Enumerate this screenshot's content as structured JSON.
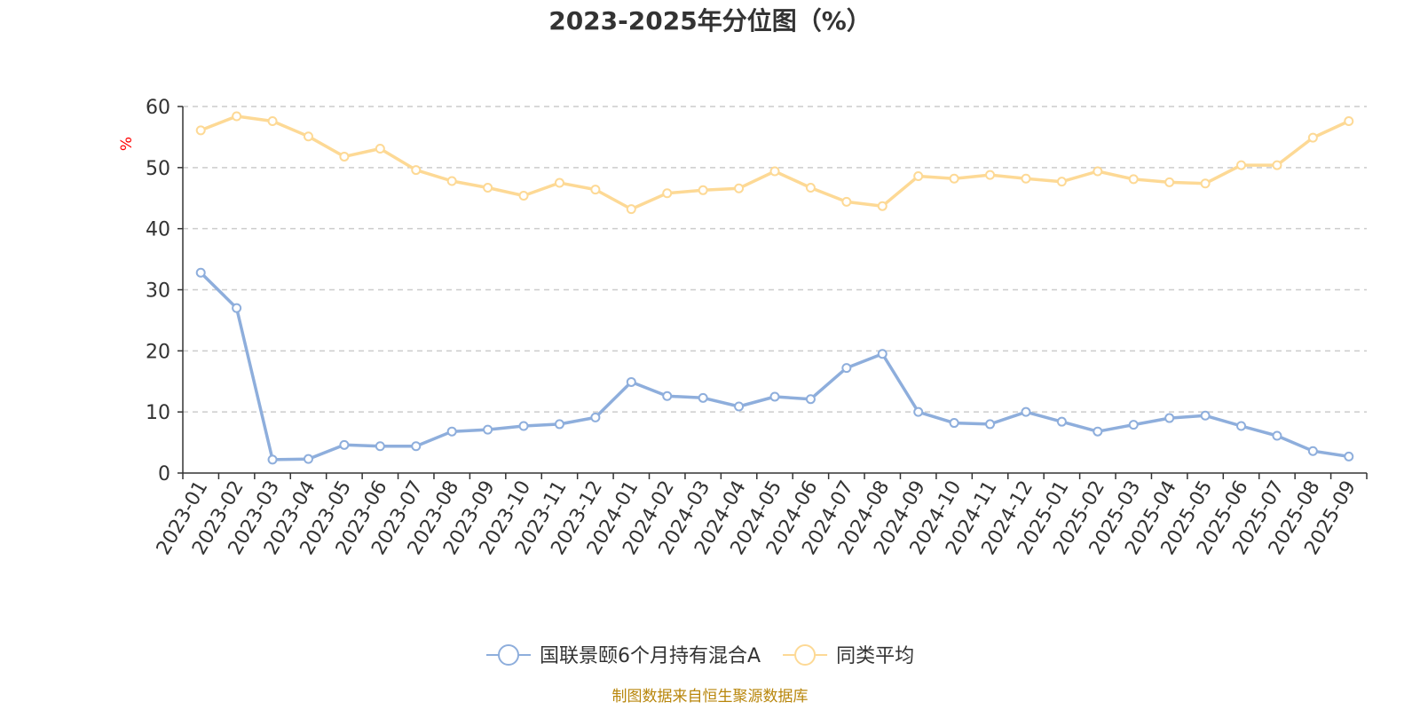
{
  "chart_data": {
    "type": "line",
    "title": "2023-2025年分位图（%）",
    "ylabel": "%",
    "xlabel": "",
    "ylim": [
      0,
      60
    ],
    "yticks": [
      0,
      10,
      20,
      30,
      40,
      50,
      60
    ],
    "grid": "horizontal-dashed",
    "legend_position": "bottom-center",
    "categories": [
      "2023-01",
      "2023-02",
      "2023-03",
      "2023-04",
      "2023-05",
      "2023-06",
      "2023-07",
      "2023-08",
      "2023-09",
      "2023-10",
      "2023-11",
      "2023-12",
      "2024-01",
      "2024-02",
      "2024-03",
      "2024-04",
      "2024-05",
      "2024-06",
      "2024-07",
      "2024-08",
      "2024-09",
      "2024-10",
      "2024-11",
      "2024-12",
      "2025-01",
      "2025-02",
      "2025-03",
      "2025-04",
      "2025-05",
      "2025-06",
      "2025-07",
      "2025-08",
      "2025-09"
    ],
    "series": [
      {
        "name": "国联景颐6个月持有混合A",
        "color": "#8eaedc",
        "values": [
          32.8,
          27.0,
          2.2,
          2.3,
          4.6,
          4.4,
          4.4,
          6.8,
          7.1,
          7.7,
          8.0,
          9.1,
          14.9,
          12.6,
          12.3,
          10.9,
          12.5,
          12.1,
          17.2,
          19.5,
          10.0,
          8.2,
          8.0,
          10.0,
          8.4,
          6.8,
          7.9,
          9.0,
          9.4,
          7.7,
          6.1,
          3.6,
          2.7
        ]
      },
      {
        "name": "同类平均",
        "color": "#fdd995",
        "values": [
          56.1,
          58.4,
          57.6,
          55.1,
          51.8,
          53.1,
          49.6,
          47.8,
          46.7,
          45.4,
          47.5,
          46.4,
          43.2,
          45.8,
          46.3,
          46.6,
          49.4,
          46.7,
          44.4,
          43.7,
          48.6,
          48.2,
          48.8,
          48.2,
          47.7,
          49.4,
          48.1,
          47.6,
          47.4,
          50.4,
          50.4,
          54.9,
          57.6
        ]
      }
    ],
    "source": "制图数据来自恒生聚源数据库"
  }
}
